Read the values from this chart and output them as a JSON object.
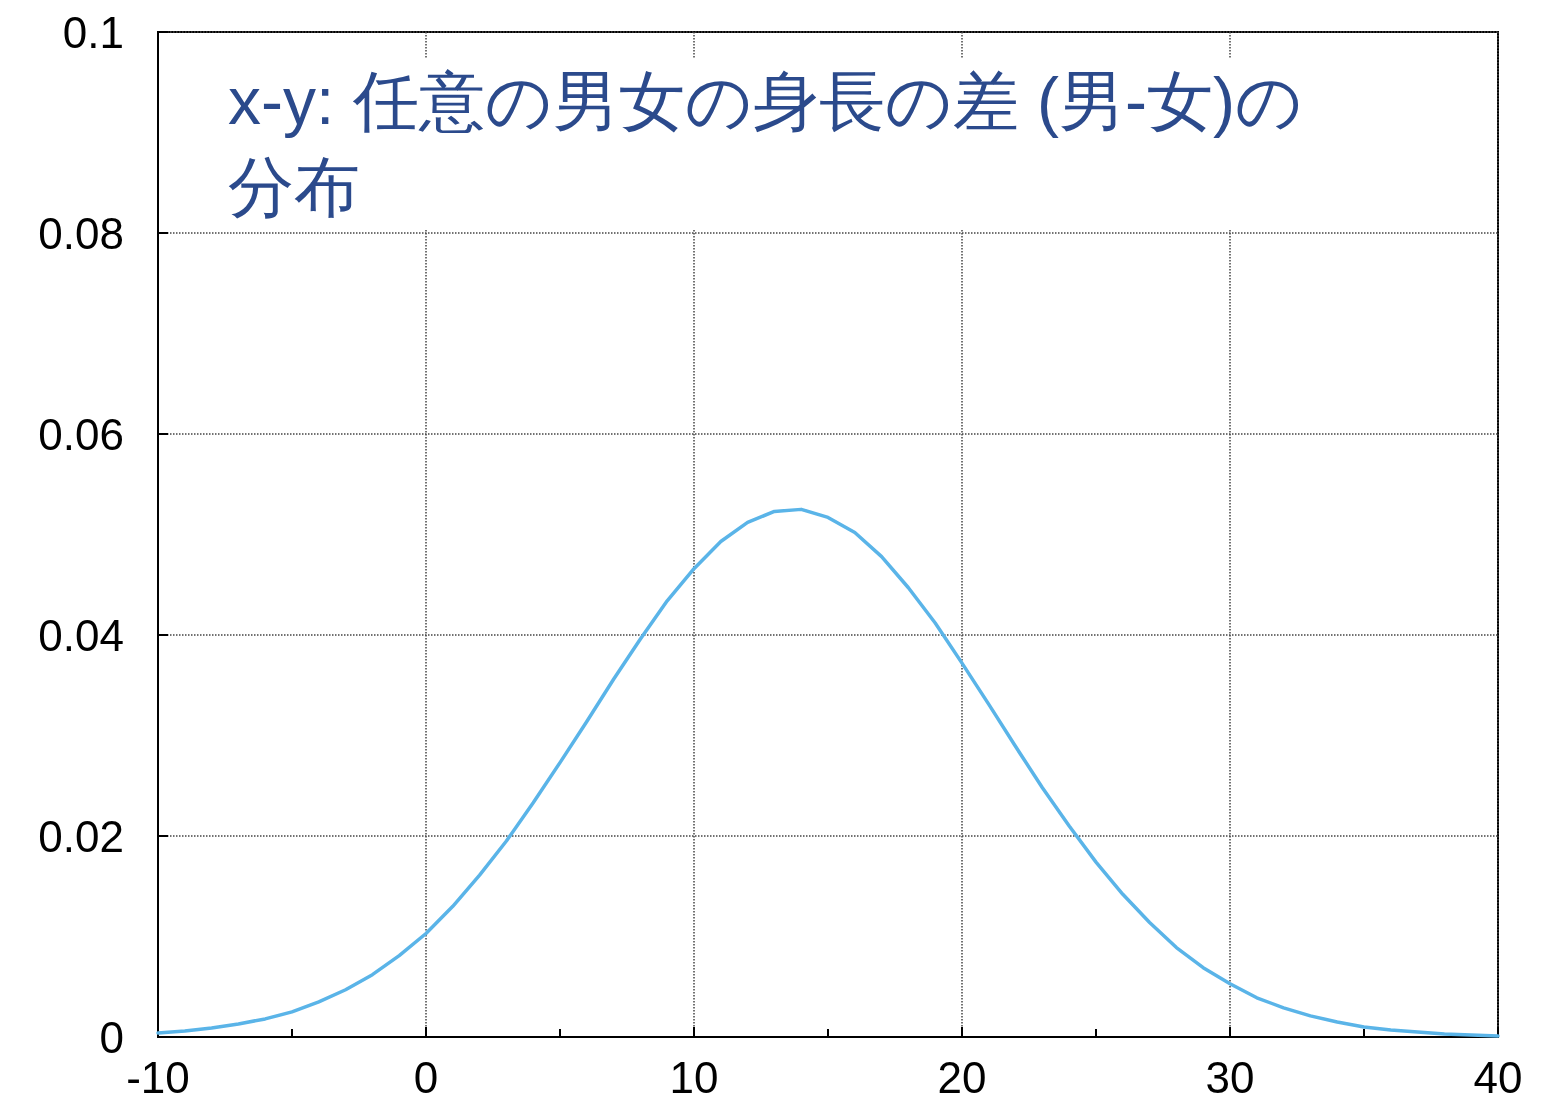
{
  "chart_data": {
    "type": "line",
    "title": "x-y: 任意の男女の身長の差 (男-女)の分布",
    "x": [
      -10,
      -9,
      -8,
      -7,
      -6,
      -5,
      -4,
      -3,
      -2,
      -1,
      0,
      1,
      2,
      3,
      4,
      5,
      6,
      7,
      8,
      9,
      10,
      11,
      12,
      13,
      14,
      15,
      16,
      17,
      18,
      19,
      20,
      21,
      22,
      23,
      24,
      25,
      26,
      27,
      28,
      29,
      30,
      31,
      32,
      33,
      34,
      35,
      36,
      37,
      38,
      39,
      40
    ],
    "series": [
      {
        "color": "#5ab4e8",
        "values": [
          0.0004,
          0.0006,
          0.0009,
          0.0013,
          0.0018,
          0.0025,
          0.0035,
          0.0047,
          0.0062,
          0.0081,
          0.0103,
          0.013,
          0.0161,
          0.0195,
          0.0233,
          0.0273,
          0.0314,
          0.0356,
          0.0396,
          0.0434,
          0.0466,
          0.0493,
          0.0512,
          0.0523,
          0.0525,
          0.0517,
          0.0502,
          0.0478,
          0.0447,
          0.0412,
          0.0372,
          0.0331,
          0.0289,
          0.0248,
          0.021,
          0.0174,
          0.0142,
          0.0114,
          0.0089,
          0.0069,
          0.0053,
          0.0039,
          0.0029,
          0.0021,
          0.0015,
          0.001,
          0.0007,
          0.0005,
          0.0003,
          0.0002,
          0.0001
        ]
      }
    ],
    "xlim": [
      -10,
      40
    ],
    "xticks": [
      -10,
      0,
      10,
      20,
      30,
      40
    ],
    "ylim": [
      0,
      0.1
    ],
    "yticks": [
      0,
      0.02,
      0.04,
      0.06,
      0.08,
      0.1
    ],
    "grid": true,
    "marker": "none",
    "line_style": "solid"
  }
}
